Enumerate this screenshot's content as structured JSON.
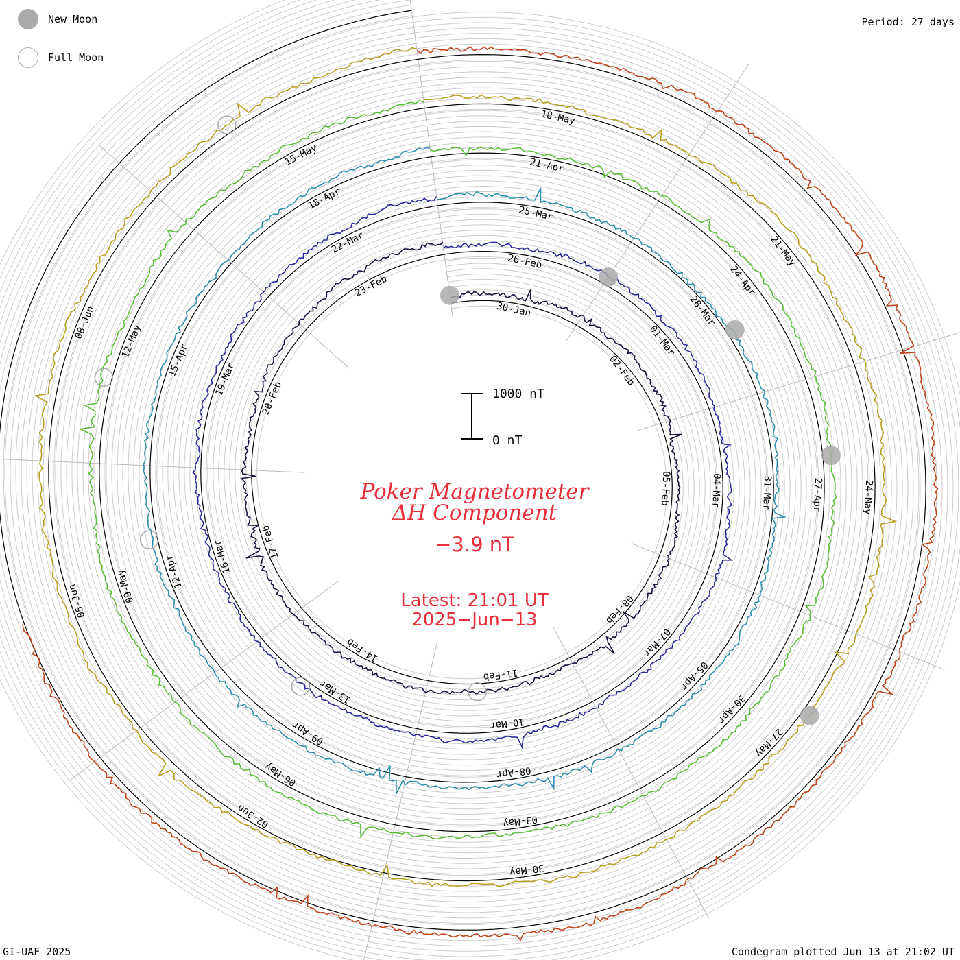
{
  "legend": {
    "new_moon_label": "New Moon",
    "full_moon_label": "Full Moon"
  },
  "period_label": "Period: 27 days",
  "footer_left": "GI-UAF 2025",
  "footer_right": "Condegram plotted Jun 13 at 21:02 UT",
  "center": {
    "title_line1": "Poker Magnetometer",
    "title_line2": "ΔH Component",
    "current_value": "−3.9 nT",
    "latest_line1": "Latest: 21:01 UT",
    "latest_line2": "2025−Jun−13"
  },
  "scale_bar": {
    "top_label": "1000 nT",
    "bottom_label": "0 nT"
  },
  "chart_data": {
    "type": "line",
    "title": "Poker Magnetometer ΔH Component",
    "period_days": 27,
    "units": "nT",
    "series": [
      {
        "color": "#1a1040",
        "tick_labels": [
          "30-Jan",
          "02-Feb",
          "05-Feb",
          "08-Feb",
          "11-Feb",
          "14-Feb",
          "17-Feb",
          "20-Feb",
          "23-Feb"
        ]
      },
      {
        "color": "#2a2a9a",
        "tick_labels": [
          "26-Feb",
          "01-Mar",
          "04-Mar",
          "07-Mar",
          "10-Mar",
          "13-Mar",
          "16-Mar",
          "19-Mar",
          "22-Mar"
        ]
      },
      {
        "color": "#2f8fb0",
        "tick_labels": [
          "25-Mar",
          "28-Mar",
          "31-Mar",
          "05-Apr",
          "08-Apr",
          "09-Apr",
          "12-Apr",
          "15-Apr",
          "18-Apr"
        ]
      },
      {
        "color": "#5cbf3a",
        "tick_labels": [
          "21-Apr",
          "24-Apr",
          "27-Apr",
          "30-Apr",
          "03-May",
          "06-May",
          "09-May",
          "12-May",
          "15-May"
        ]
      },
      {
        "color": "#b8a020",
        "tick_labels": [
          "18-May",
          "21-May",
          "24-May",
          "27-May",
          "30-May",
          "02-Jun",
          "05-Jun",
          "08-Jun"
        ]
      },
      {
        "color": "#c0451a",
        "tick_labels": []
      }
    ],
    "new_moons": [
      "2025-01-29",
      "2025-02-28",
      "2025-03-29",
      "2025-04-27",
      "2025-05-27"
    ],
    "full_moons": [
      "2025-02-12",
      "2025-03-14",
      "2025-04-13",
      "2025-05-12",
      "2025-06-11"
    ],
    "latest_value": -3.9,
    "latest_time": "2025-06-13 21:01 UT"
  }
}
